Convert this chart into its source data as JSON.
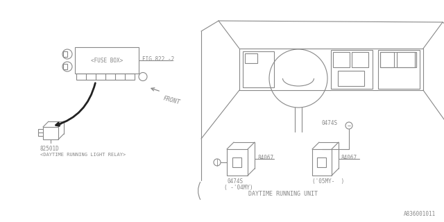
{
  "bg_color": "#ffffff",
  "line_color": "#888888",
  "dark_line": "#222222",
  "part_number_bottom": "A836001011",
  "fuse_box_label": "<FUSE BOX>",
  "fuse_box_ref": "FIG.822 -2",
  "relay_part": "82501D",
  "relay_label": "<DAYTIME RUNNING LIGHT RELAY>",
  "front_label": "FRONT",
  "unit_label": "DAYTIME RUNNING UNIT",
  "unit_part_04": "0474S",
  "unit_part_05": "0474S",
  "unit_part_04_sub": "( -'04MY)",
  "unit_part_05_sub": "('05MY-  )",
  "part_84067_1": "84067",
  "part_84067_2": "84067"
}
